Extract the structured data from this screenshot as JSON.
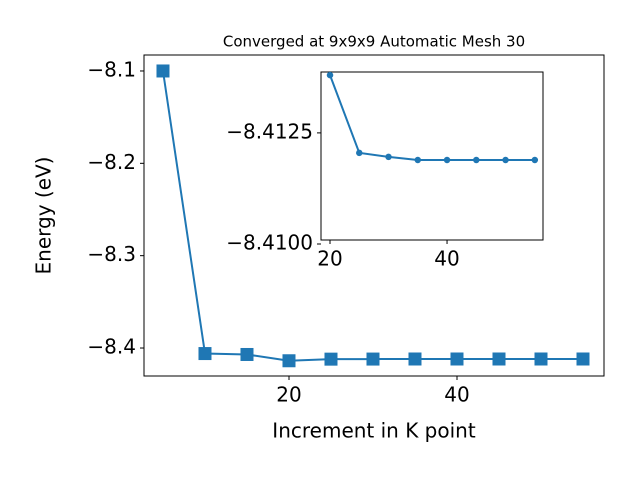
{
  "chart_data": [
    {
      "type": "line",
      "title": "Converged at 9x9x9 Automatic Mesh 30",
      "xlabel": "Increment in K point",
      "ylabel": "Energy (eV)",
      "x": [
        5,
        10,
        15,
        20,
        25,
        30,
        35,
        40,
        45,
        50,
        55
      ],
      "series": [
        {
          "color": "#1f77b4",
          "marker": "square",
          "values": [
            -8.1,
            -8.406,
            -8.407,
            -8.4138,
            -8.41205,
            -8.41196,
            -8.41189,
            -8.41189,
            -8.41189,
            -8.41189,
            -8.41189
          ]
        }
      ],
      "xlim": [
        2.74,
        57.5
      ],
      "ylim": [
        -8.4303,
        -8.0827
      ],
      "xticks": [
        20,
        40
      ],
      "yticks": [
        {
          "value": -8.4,
          "label": "−8.4"
        },
        {
          "value": -8.3,
          "label": "−8.3"
        },
        {
          "value": -8.2,
          "label": "−8.2"
        },
        {
          "value": -8.1,
          "label": "−8.1"
        }
      ]
    },
    {
      "type": "line",
      "x": [
        20,
        25,
        30,
        35,
        40,
        45,
        50,
        55
      ],
      "series": [
        {
          "color": "#1f77b4",
          "marker": "circle",
          "values": [
            -8.4138,
            -8.41205,
            -8.41196,
            -8.41189,
            -8.41189,
            -8.41189,
            -8.41189,
            -8.41189
          ]
        }
      ],
      "xlim": [
        18.46,
        56.4
      ],
      "ylim": [
        -8.41009,
        -8.41387
      ],
      "xticks": [
        20,
        40
      ],
      "yticks": [
        {
          "value": -8.41,
          "label": "−8.4100"
        },
        {
          "value": -8.4125,
          "label": "−8.4125"
        }
      ]
    }
  ]
}
